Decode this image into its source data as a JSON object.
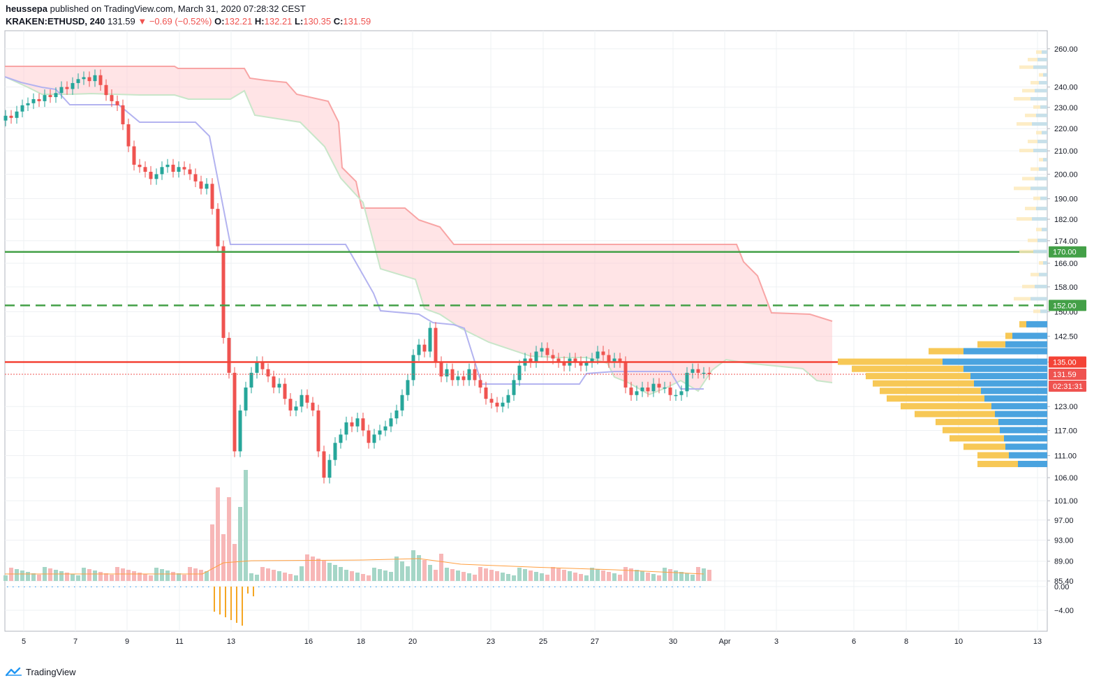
{
  "header": {
    "author": "heussepa",
    "published_text": "published on TradingView.com, March 31, 2020 07:28:32 CEST",
    "symbol": "KRAKEN:ETHUSD, 240",
    "last": "131.59",
    "arrow": "▼",
    "change": "−0.69 (−0.52%)",
    "o_label": "O:",
    "o_value": "132.21",
    "h_label": "H:",
    "h_value": "132.21",
    "l_label": "L:",
    "l_value": "130.35",
    "c_label": "C:",
    "c_value": "131.59"
  },
  "footer": {
    "brand": "TradingView"
  },
  "colors": {
    "up": "#26a69a",
    "down": "#ef5350",
    "kumo_bear": "#ffcdd2",
    "senkou_a": "#c8e6c9",
    "senkou_b": "#f8a5a5",
    "kijun": "#b3b3f0",
    "support_green": "#43a047",
    "resistance_red": "#f44336",
    "vp_up": "#4aa3df",
    "vp_down": "#f7c856"
  },
  "chart_data": {
    "type": "candlestick",
    "interval": "240",
    "y_axis": {
      "scale": "log",
      "range": [
        85.4,
        270
      ],
      "tick_labels": [
        "260.00",
        "240.00",
        "230.00",
        "220.00",
        "210.00",
        "200.00",
        "190.00",
        "182.00",
        "174.00",
        "166.00",
        "158.00",
        "150.00",
        "142.50",
        "135.00",
        "123.00",
        "117.00",
        "111.00",
        "106.00",
        "101.00",
        "97.00",
        "93.00",
        "89.00",
        "85.40"
      ]
    },
    "x_axis": {
      "tick_labels": [
        "5",
        "7",
        "9",
        "11",
        "13",
        "16",
        "18",
        "20",
        "23",
        "25",
        "27",
        "30",
        "Apr",
        "3",
        "6",
        "8",
        "10",
        "13"
      ]
    },
    "price_badges": [
      {
        "value": "170.00",
        "color": "#43a047"
      },
      {
        "value": "152.00",
        "color": "#43a047"
      },
      {
        "value": "135.00",
        "color": "#f44336"
      },
      {
        "value": "131.59",
        "color": "#ef5350"
      },
      {
        "value": "02:31:31",
        "color": "#ef5350"
      }
    ],
    "horizontal_levels": [
      {
        "price": 170,
        "style": "solid",
        "color": "#43a047"
      },
      {
        "price": 152,
        "style": "dashed",
        "color": "#43a047"
      },
      {
        "price": 135,
        "style": "solid",
        "color": "#f44336"
      },
      {
        "price": 131.59,
        "style": "dotted",
        "color": "#ef5350"
      }
    ],
    "oscillator": {
      "tick_labels": [
        "0.00",
        "−4.00"
      ]
    },
    "candles_close_path": [
      [
        0,
        226
      ],
      [
        8,
        225
      ],
      [
        16,
        228
      ],
      [
        24,
        231
      ],
      [
        32,
        232
      ],
      [
        40,
        234
      ],
      [
        48,
        233
      ],
      [
        56,
        236
      ],
      [
        64,
        235
      ],
      [
        72,
        237
      ],
      [
        80,
        240
      ],
      [
        88,
        239
      ],
      [
        96,
        242
      ],
      [
        104,
        244
      ],
      [
        112,
        245
      ],
      [
        120,
        243
      ],
      [
        128,
        246
      ],
      [
        136,
        241
      ],
      [
        144,
        236
      ],
      [
        152,
        233
      ],
      [
        160,
        231
      ],
      [
        168,
        222
      ],
      [
        176,
        212
      ],
      [
        184,
        204
      ],
      [
        192,
        203
      ],
      [
        200,
        201
      ],
      [
        208,
        198
      ],
      [
        216,
        200
      ],
      [
        224,
        203
      ],
      [
        232,
        204
      ],
      [
        240,
        201
      ],
      [
        248,
        203
      ],
      [
        256,
        202
      ],
      [
        264,
        200
      ],
      [
        272,
        197
      ],
      [
        280,
        194
      ],
      [
        288,
        196
      ],
      [
        296,
        186
      ],
      [
        304,
        172
      ],
      [
        312,
        142
      ],
      [
        320,
        132
      ],
      [
        328,
        112
      ],
      [
        336,
        122
      ],
      [
        344,
        128
      ],
      [
        352,
        132
      ],
      [
        360,
        135
      ],
      [
        368,
        133
      ],
      [
        376,
        131
      ],
      [
        384,
        128
      ],
      [
        392,
        129
      ],
      [
        400,
        125
      ],
      [
        408,
        122
      ],
      [
        416,
        123
      ],
      [
        424,
        126
      ],
      [
        432,
        124
      ],
      [
        440,
        122
      ],
      [
        448,
        112
      ],
      [
        456,
        106
      ],
      [
        464,
        110
      ],
      [
        472,
        114
      ],
      [
        480,
        116
      ],
      [
        488,
        119
      ],
      [
        496,
        118
      ],
      [
        504,
        120
      ],
      [
        512,
        117
      ],
      [
        520,
        114
      ],
      [
        528,
        116
      ],
      [
        536,
        117
      ],
      [
        544,
        118
      ],
      [
        552,
        120
      ],
      [
        560,
        122
      ],
      [
        568,
        126
      ],
      [
        576,
        130
      ],
      [
        584,
        137
      ],
      [
        592,
        140
      ],
      [
        600,
        138
      ],
      [
        608,
        145
      ],
      [
        616,
        135
      ],
      [
        624,
        131
      ],
      [
        632,
        133
      ],
      [
        640,
        130
      ],
      [
        648,
        131
      ],
      [
        656,
        130
      ],
      [
        664,
        133
      ],
      [
        672,
        130
      ],
      [
        680,
        128
      ],
      [
        688,
        125
      ],
      [
        696,
        124
      ],
      [
        704,
        123
      ],
      [
        712,
        124
      ],
      [
        720,
        126
      ],
      [
        728,
        130
      ],
      [
        736,
        134
      ],
      [
        744,
        136
      ],
      [
        752,
        135
      ],
      [
        760,
        138
      ],
      [
        768,
        139
      ],
      [
        776,
        137
      ],
      [
        784,
        136
      ],
      [
        792,
        135
      ],
      [
        800,
        134
      ],
      [
        808,
        136
      ],
      [
        816,
        135
      ],
      [
        824,
        134
      ],
      [
        832,
        135
      ],
      [
        840,
        136
      ],
      [
        848,
        138
      ],
      [
        856,
        137
      ],
      [
        864,
        135
      ],
      [
        872,
        136
      ],
      [
        880,
        135
      ],
      [
        888,
        128
      ],
      [
        896,
        126
      ],
      [
        904,
        127
      ],
      [
        912,
        128
      ],
      [
        920,
        127
      ],
      [
        928,
        129
      ],
      [
        936,
        128
      ],
      [
        944,
        128
      ],
      [
        952,
        126
      ],
      [
        960,
        126
      ],
      [
        968,
        127
      ],
      [
        976,
        132
      ],
      [
        984,
        133
      ],
      [
        992,
        132
      ],
      [
        1000,
        132
      ],
      [
        1008,
        131.59
      ]
    ]
  }
}
